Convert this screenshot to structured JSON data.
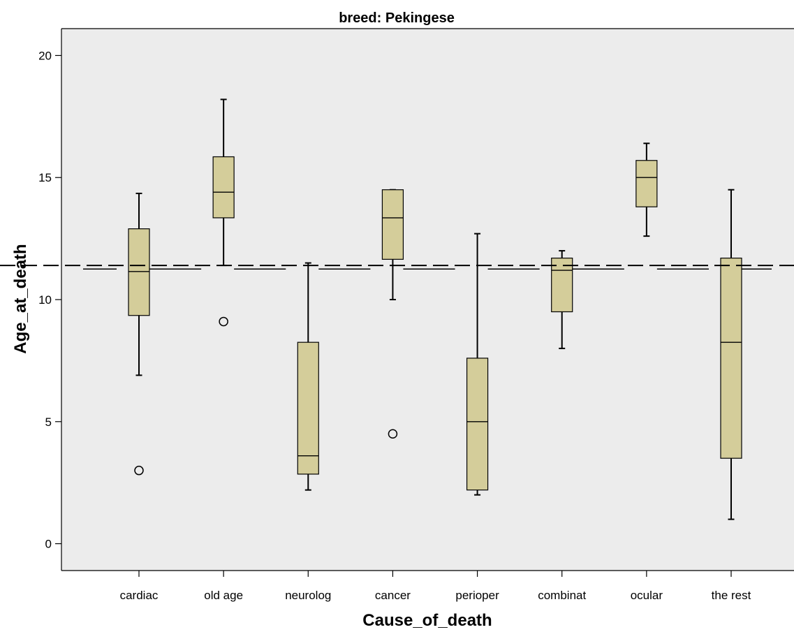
{
  "chart_data": {
    "type": "boxplot",
    "title": "breed: Pekingese",
    "xlabel": "Cause_of_death",
    "ylabel": "Age_at_death",
    "ylim": [
      -1.1,
      21.1
    ],
    "yticks": [
      0,
      5,
      10,
      15,
      20
    ],
    "grid": false,
    "reference_lines": [
      {
        "style": "long-dash",
        "value": 11.4,
        "span": "full"
      },
      {
        "style": "segmented",
        "value": 11.25,
        "span": "per-category"
      }
    ],
    "categories": [
      "cardiac",
      "old age",
      "neurolog",
      "cancer",
      "perioper",
      "combinat",
      "ocular",
      "the rest"
    ],
    "boxes": [
      {
        "category": "cardiac",
        "whisker_low": 6.9,
        "q1": 9.35,
        "median": 11.15,
        "q3": 12.9,
        "whisker_high": 14.35,
        "outliers": [
          3.0
        ]
      },
      {
        "category": "old age",
        "whisker_low": 11.4,
        "q1": 13.35,
        "median": 14.4,
        "q3": 15.85,
        "whisker_high": 18.2,
        "outliers": [
          9.1
        ]
      },
      {
        "category": "neurolog",
        "whisker_low": 2.2,
        "q1": 2.85,
        "median": 3.6,
        "q3": 8.25,
        "whisker_high": 11.5,
        "outliers": []
      },
      {
        "category": "cancer",
        "whisker_low": 10.0,
        "q1": 11.65,
        "median": 13.35,
        "q3": 14.5,
        "whisker_high": 14.5,
        "outliers": [
          4.5
        ]
      },
      {
        "category": "perioper",
        "whisker_low": 2.0,
        "q1": 2.2,
        "median": 5.0,
        "q3": 7.6,
        "whisker_high": 12.7,
        "outliers": []
      },
      {
        "category": "combinat",
        "whisker_low": 8.0,
        "q1": 9.5,
        "median": 11.2,
        "q3": 11.7,
        "whisker_high": 12.0,
        "outliers": []
      },
      {
        "category": "ocular",
        "whisker_low": 12.6,
        "q1": 13.8,
        "median": 15.0,
        "q3": 15.7,
        "whisker_high": 16.4,
        "outliers": []
      },
      {
        "category": "the rest",
        "whisker_low": 1.0,
        "q1": 3.5,
        "median": 8.25,
        "q3": 11.7,
        "whisker_high": 14.5,
        "outliers": []
      }
    ],
    "colors": {
      "plot_background": "#ececec",
      "box_fill": "#d4cd9a",
      "stroke": "#000000"
    }
  }
}
